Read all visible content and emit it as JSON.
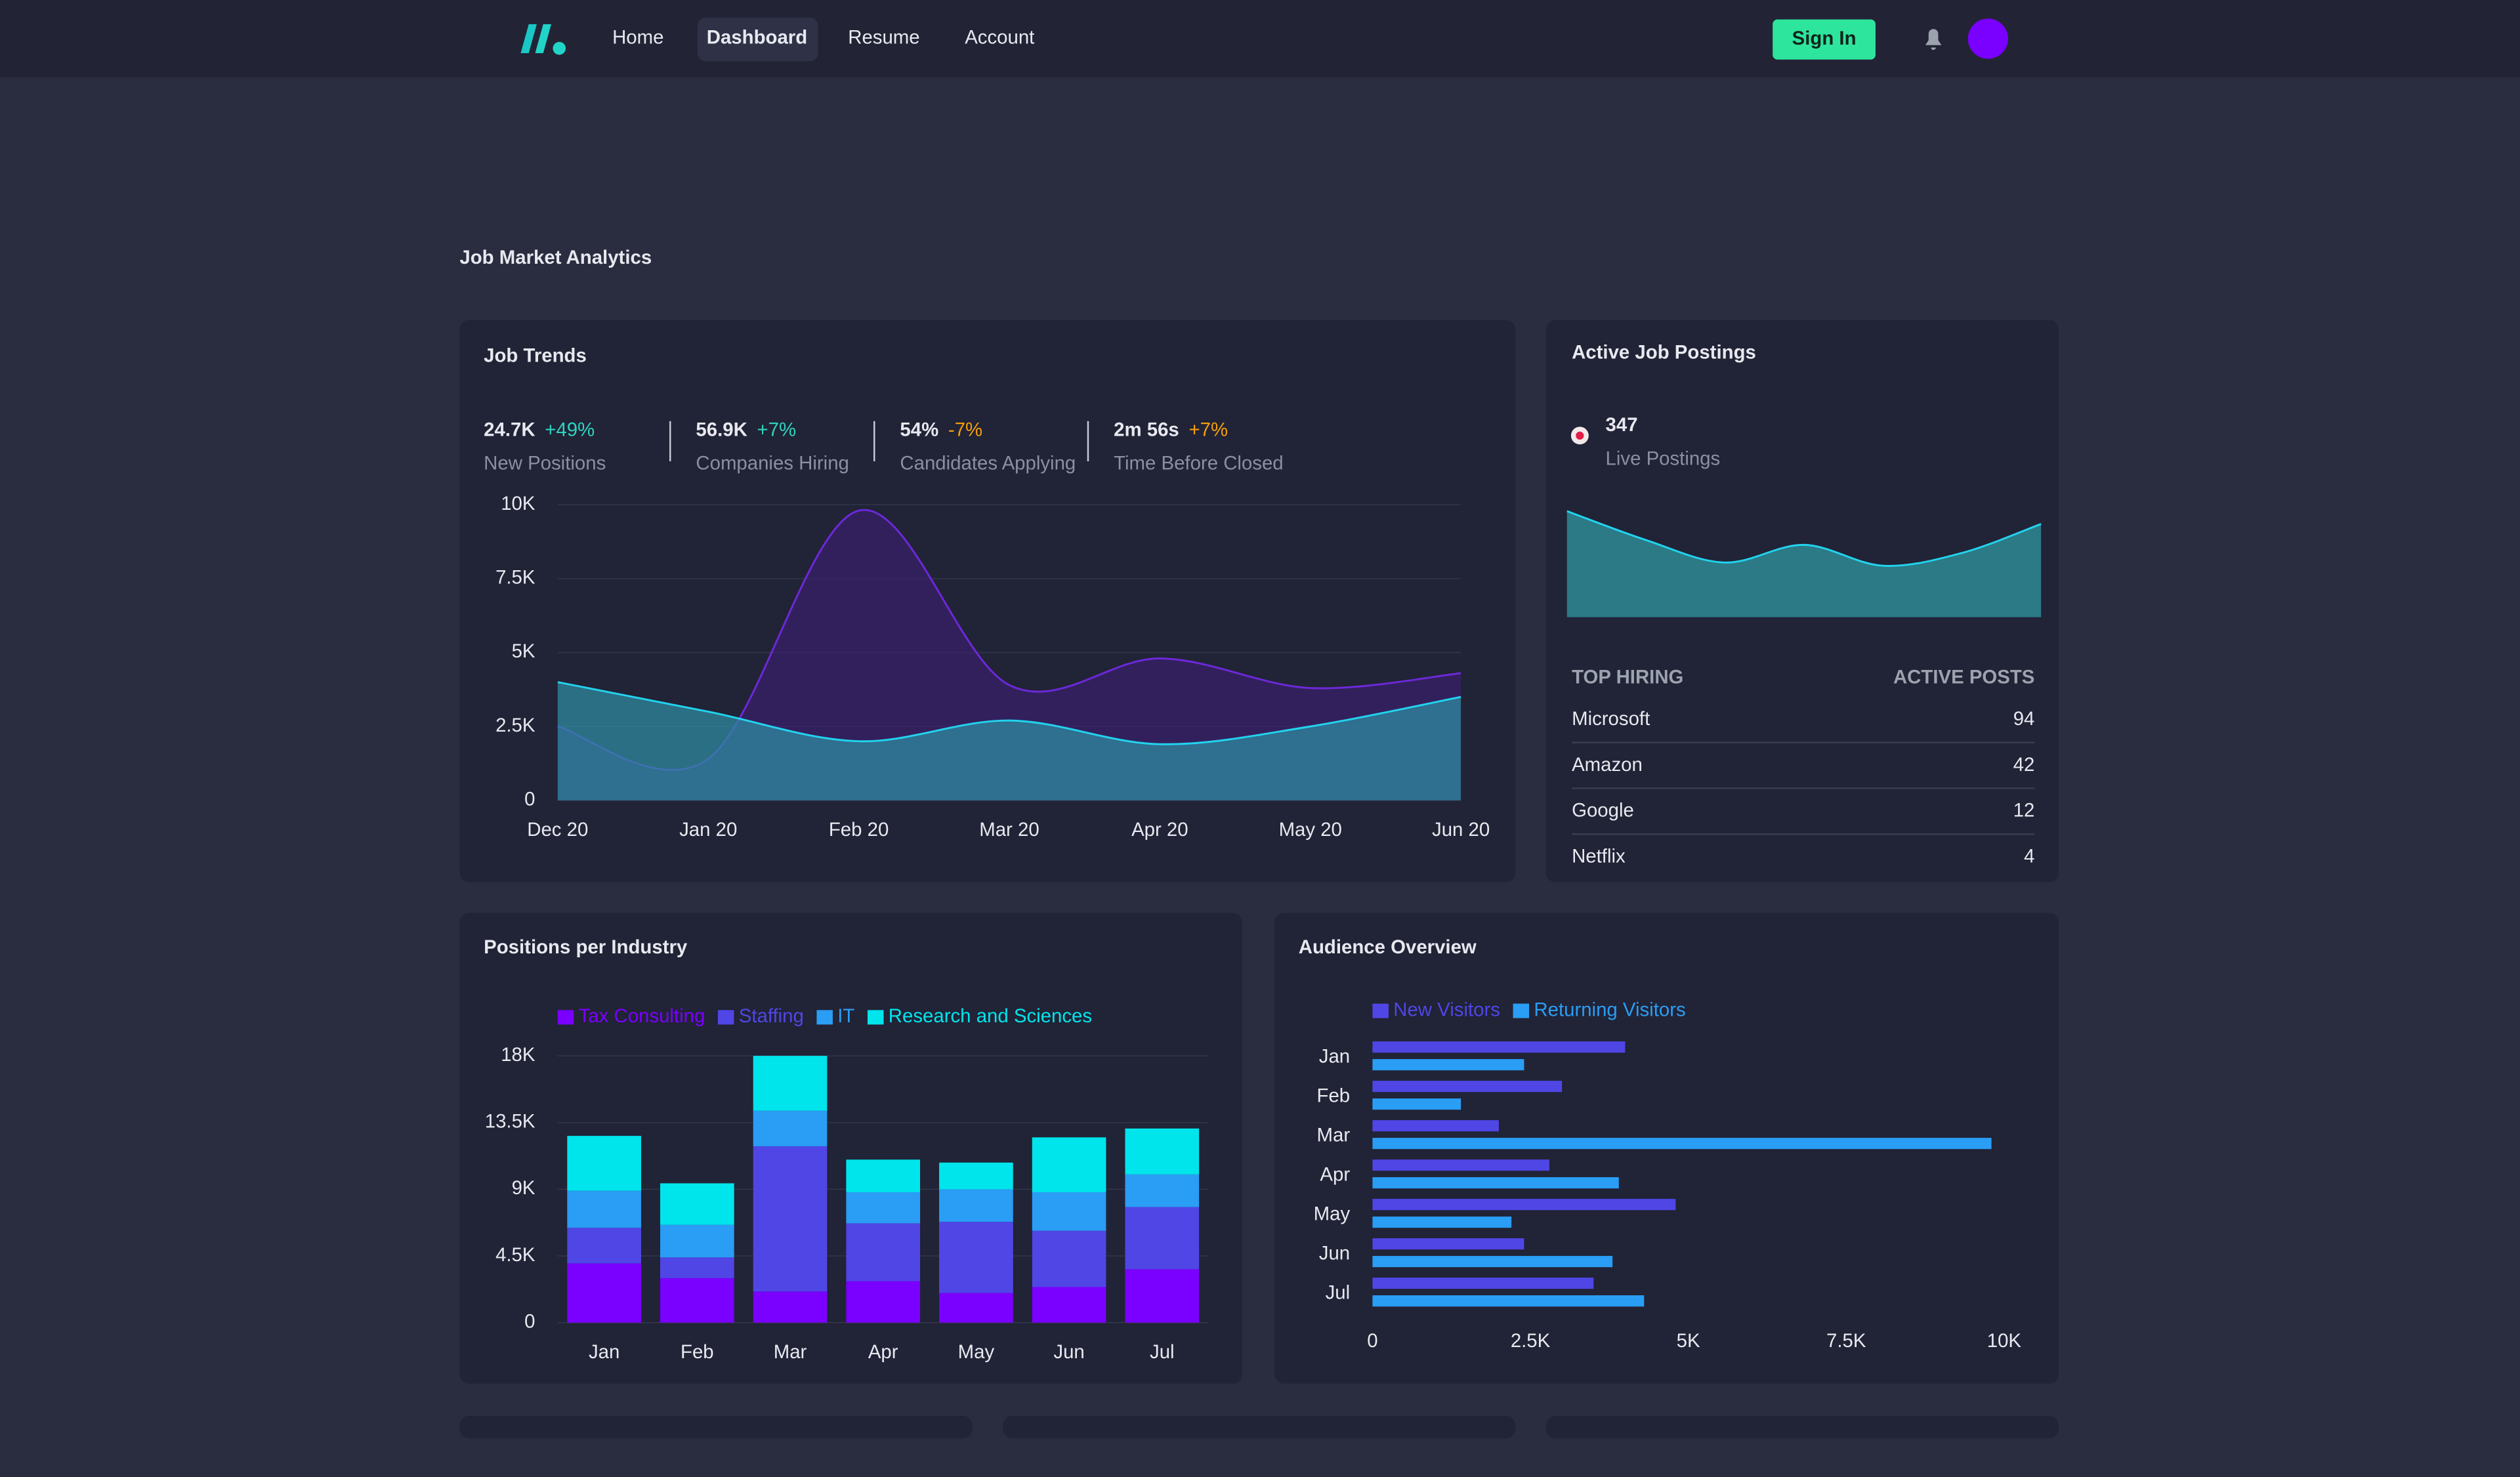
{
  "nav": {
    "links": [
      "Home",
      "Dashboard",
      "Resume",
      "Account"
    ],
    "sign_in": "Sign In"
  },
  "page_title": "Job Market Analytics",
  "job_trends_stats": [
    {
      "value": "24.7K",
      "change": "+49%",
      "change_color": "#2dd4bf",
      "label": "New Positions"
    },
    {
      "value": "56.9K",
      "change": "+7%",
      "change_color": "#2dd4bf",
      "label": "Companies Hiring"
    },
    {
      "value": "54%",
      "change": "-7%",
      "change_color": "#f59e0b",
      "label": "Candidates Applying"
    },
    {
      "value": "2m 56s",
      "change": "+7%",
      "change_color": "#f59e0b",
      "label": "Time Before Closed"
    }
  ],
  "active_postings": {
    "title": "Active Job Postings",
    "count": "347",
    "count_label": "Live Postings",
    "table": {
      "headers": [
        "TOP HIRING",
        "ACTIVE POSTS"
      ],
      "rows": [
        [
          "Microsoft",
          "94"
        ],
        [
          "Amazon",
          "42"
        ],
        [
          "Google",
          "12"
        ],
        [
          "Netflix",
          "4"
        ]
      ]
    }
  },
  "chart_data": [
    {
      "type": "area",
      "title": "Job Trends",
      "categories": [
        "Dec 20",
        "Jan 20",
        "Feb 20",
        "Mar 20",
        "Apr 20",
        "May 20",
        "Jun 20"
      ],
      "series": [
        {
          "color": "#6d28d9",
          "values": [
            2500,
            1400,
            9800,
            3900,
            4800,
            3800,
            4300
          ]
        },
        {
          "color": "#22d3ee",
          "values": [
            4000,
            3000,
            2000,
            2700,
            1900,
            2500,
            3500
          ]
        }
      ],
      "ylim": [
        0,
        10000
      ],
      "yticks": [
        0,
        {
          "value": 2500,
          "label": "2.5K"
        },
        {
          "value": 5000,
          "label": "5K"
        },
        {
          "value": 7500,
          "label": "7.5K"
        },
        {
          "value": 10000,
          "label": "10K"
        }
      ],
      "grid": true
    },
    {
      "type": "sparkline",
      "color": "#22d3ee",
      "values": [
        66,
        48,
        34,
        45,
        32,
        40,
        58
      ]
    },
    {
      "type": "bar",
      "title": "Positions per Industry",
      "stacked": true,
      "categories": [
        "Jan",
        "Feb",
        "Mar",
        "Apr",
        "May",
        "Jun",
        "Jul"
      ],
      "series": [
        {
          "name": "Tax Consulting",
          "color": "#7a00ff",
          "values": [
            4000,
            3000,
            2100,
            2800,
            2000,
            2400,
            3600
          ]
        },
        {
          "name": "Staffing",
          "color": "#5046e5",
          "values": [
            2400,
            1400,
            9800,
            3900,
            4800,
            3800,
            4200
          ]
        },
        {
          "name": "IT",
          "color": "#2a9df4",
          "values": [
            2500,
            2200,
            2400,
            2100,
            2200,
            2600,
            2200
          ]
        },
        {
          "name": "Research and Sciences",
          "color": "#00e5ec",
          "values": [
            3700,
            2800,
            3700,
            2200,
            1800,
            3700,
            3100
          ]
        }
      ],
      "ylim": [
        0,
        18000
      ],
      "yticks": [
        0,
        {
          "value": 4500,
          "label": "4.5K"
        },
        {
          "value": 9000,
          "label": "9K"
        },
        {
          "value": 13500,
          "label": "13.5K"
        },
        {
          "value": 18000,
          "label": "18K"
        }
      ],
      "grid": true
    },
    {
      "type": "barh",
      "title": "Audience Overview",
      "categories": [
        "Jan",
        "Feb",
        "Mar",
        "Apr",
        "May",
        "Jun",
        "Jul"
      ],
      "series": [
        {
          "name": "New Visitors",
          "color": "#4f46e5",
          "values": [
            4000,
            3000,
            2000,
            2800,
            4800,
            2400,
            3500
          ]
        },
        {
          "name": "Returning Visitors",
          "color": "#2a9df4",
          "values": [
            2400,
            1400,
            9800,
            3900,
            2200,
            3800,
            4300
          ]
        }
      ],
      "xlim": [
        0,
        10000
      ],
      "xticks": [
        0,
        {
          "value": 2500,
          "label": "2.5K"
        },
        {
          "value": 5000,
          "label": "5K"
        },
        {
          "value": 7500,
          "label": "7.5K"
        },
        {
          "value": 10000,
          "label": "10K"
        }
      ]
    }
  ]
}
